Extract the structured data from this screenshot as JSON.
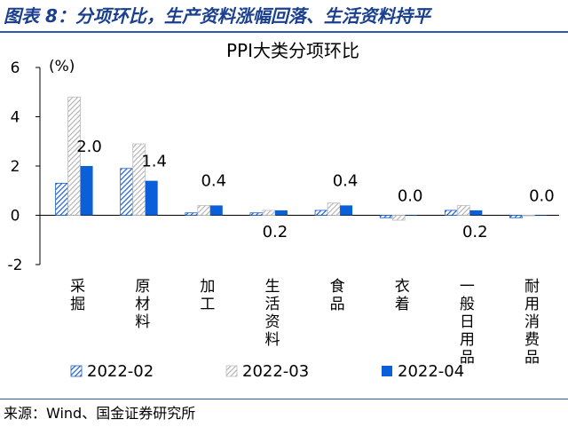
{
  "figure_title": "图表 8：分项环比，生产资料涨幅回落、生活资料持平",
  "source_text": "来源：Wind、国金证券研究所",
  "chart_data": {
    "type": "bar",
    "title": "PPI大类分项环比",
    "ylabel": "(%)",
    "xlabel": "",
    "ylim": [
      -2,
      6
    ],
    "yticks": [
      -2,
      0,
      2,
      4,
      6
    ],
    "grid": false,
    "legend_position": "bottom",
    "categories": [
      "采掘",
      "原材料",
      "加工",
      "生活资料",
      "食品",
      "衣着",
      "一般日用品",
      "耐用消费品"
    ],
    "series": [
      {
        "name": "2022-02",
        "values": [
          1.3,
          1.9,
          0.1,
          0.1,
          0.2,
          -0.1,
          0.2,
          -0.1
        ],
        "color": "#1f5fc8",
        "pattern": "hatch-blue"
      },
      {
        "name": "2022-03",
        "values": [
          4.8,
          2.9,
          0.4,
          0.2,
          0.5,
          -0.2,
          0.4,
          0.0
        ],
        "color": "#bdbdbd",
        "pattern": "hatch-gray"
      },
      {
        "name": "2022-04",
        "values": [
          2.0,
          1.4,
          0.4,
          0.2,
          0.4,
          0.0,
          0.2,
          0.0
        ],
        "color": "#0b5fd9",
        "pattern": "solid"
      }
    ],
    "data_labels": [
      "2.0",
      "1.4",
      "0.4",
      "0.2",
      "0.4",
      "0.0",
      "0.2",
      "0.0"
    ]
  }
}
